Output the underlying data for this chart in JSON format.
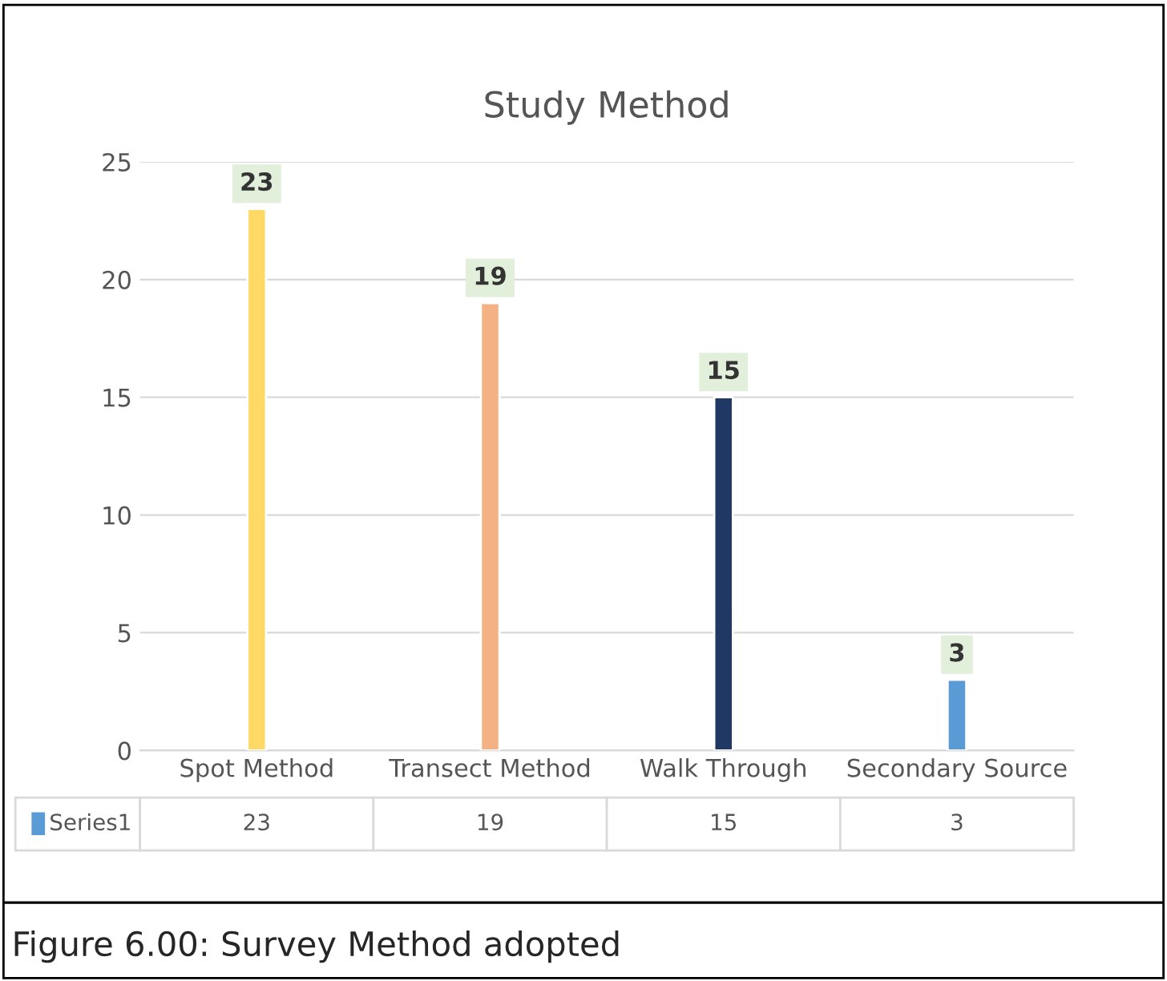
{
  "chart_data": {
    "type": "bar",
    "title": "Study Method",
    "categories": [
      "Spot Method",
      "Transect Method",
      "Walk Through",
      "Secondary Source"
    ],
    "series": [
      {
        "name": "Series1",
        "color": "#5b9bd5",
        "colors": [
          "#ffd966",
          "#f4b183",
          "#203864",
          "#5b9bd5"
        ],
        "values": [
          23,
          19,
          15,
          3
        ],
        "value_labels": [
          "23",
          "19",
          "15",
          "3"
        ]
      }
    ],
    "ylim": [
      0,
      25
    ],
    "yticks": [
      0,
      5,
      10,
      15,
      20,
      25
    ],
    "grid": "y",
    "data_labels": true,
    "legend": "bottom left",
    "annotations": [
      "Figure 6.00: Survey Method adopted",
      {
        "text": "23",
        "x": "Spot Method"
      },
      {
        "text": "19",
        "x": "Transect Method"
      },
      {
        "text": "15",
        "x": "Walk Through"
      },
      {
        "text": "3",
        "x": "Secondary Source"
      }
    ]
  }
}
